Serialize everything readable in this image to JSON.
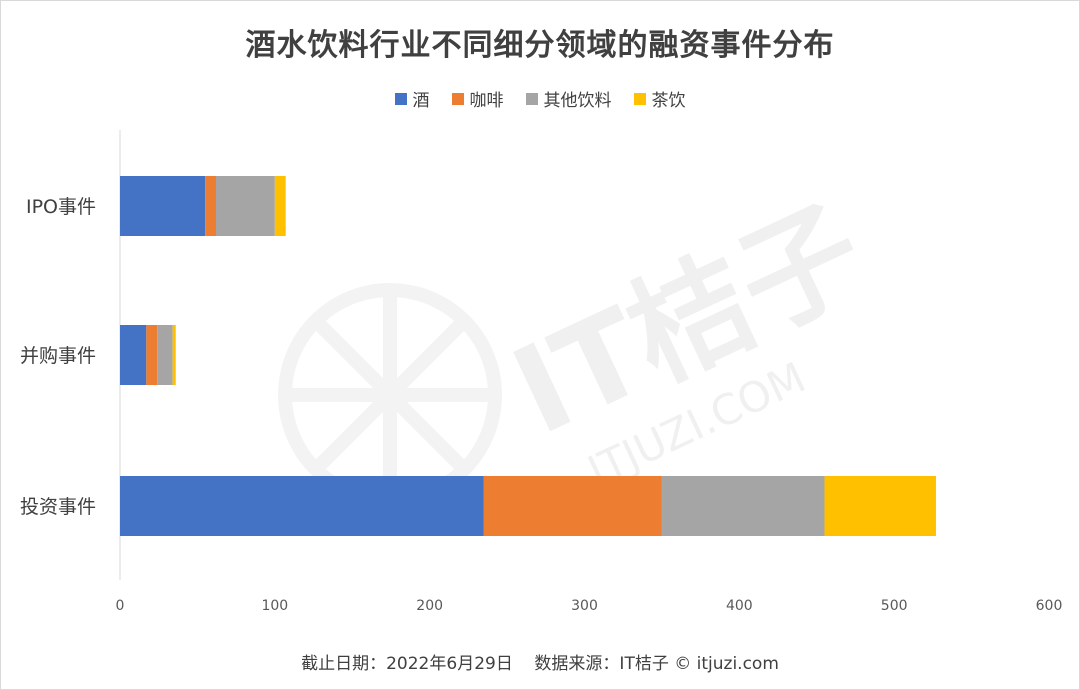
{
  "chart_data": {
    "type": "bar",
    "orientation": "horizontal",
    "stacked": true,
    "title": "酒水饮料行业不同细分领域的融资事件分布",
    "categories": [
      "IPO事件",
      "并购事件",
      "投资事件"
    ],
    "series": [
      {
        "name": "酒",
        "color": "#4472C4",
        "values": [
          55,
          17,
          235
        ]
      },
      {
        "name": "咖啡",
        "color": "#ED7D31",
        "values": [
          7,
          7,
          115
        ]
      },
      {
        "name": "其他饮料",
        "color": "#A5A5A5",
        "values": [
          38,
          10,
          105
        ]
      },
      {
        "name": "茶饮",
        "color": "#FFC000",
        "values": [
          7,
          2,
          72
        ]
      }
    ],
    "xlim": [
      0,
      600
    ],
    "x_ticks": [
      0,
      100,
      200,
      300,
      400,
      500,
      600
    ],
    "grid": false,
    "legend_position": "top"
  },
  "footer": "截止日期：2022年6月29日    数据来源：IT桔子 © itjuzi.com",
  "watermark": {
    "text": "IT桔子",
    "subtext": "ITJUZI.COM"
  }
}
